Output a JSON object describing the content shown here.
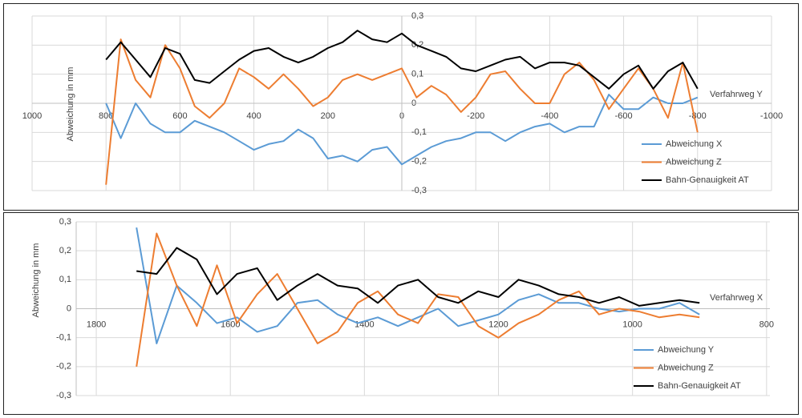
{
  "chart_data": [
    {
      "type": "line",
      "xlabel": "Verfahrweg Y",
      "ylabel": "Abweichung  in mm",
      "x": [
        800,
        760,
        720,
        680,
        640,
        600,
        560,
        520,
        480,
        440,
        400,
        360,
        320,
        280,
        240,
        200,
        160,
        120,
        80,
        40,
        0,
        -40,
        -80,
        -120,
        -160,
        -200,
        -240,
        -280,
        -320,
        -360,
        -400,
        -440,
        -480,
        -520,
        -560,
        -600,
        -640,
        -680,
        -720,
        -760,
        -800
      ],
      "xlim": [
        1000,
        -1000
      ],
      "xticks": [
        1000,
        800,
        600,
        400,
        200,
        0,
        -200,
        -400,
        -600,
        -800,
        -1000
      ],
      "ylim": [
        -0.3,
        0.3
      ],
      "yticks": [
        {
          "value": 0.3,
          "label": "0,3"
        },
        {
          "value": 0.2,
          "label": "0,2"
        },
        {
          "value": 0.1,
          "label": "0,1"
        },
        0,
        {
          "value": -0.1,
          "label": "-0,1"
        },
        {
          "value": -0.2,
          "label": "-0,2"
        },
        {
          "value": -0.3,
          "label": "-0,3"
        }
      ],
      "grid": true,
      "legend": "bottom-right",
      "series": [
        {
          "name": "Abweichung X",
          "color": "#5b9bd5",
          "values": [
            0.0,
            -0.12,
            0.0,
            -0.07,
            -0.1,
            -0.1,
            -0.06,
            -0.08,
            -0.1,
            -0.13,
            -0.16,
            -0.14,
            -0.13,
            -0.09,
            -0.12,
            -0.19,
            -0.18,
            -0.2,
            -0.16,
            -0.15,
            -0.21,
            -0.18,
            -0.15,
            -0.13,
            -0.12,
            -0.1,
            -0.1,
            -0.13,
            -0.1,
            -0.08,
            -0.07,
            -0.1,
            -0.08,
            -0.08,
            0.03,
            -0.02,
            -0.02,
            0.02,
            0.0,
            0.0,
            0.02
          ]
        },
        {
          "name": "Abweichung Z",
          "color": "#ed7d31",
          "values": [
            -0.28,
            0.22,
            0.08,
            0.02,
            0.2,
            0.12,
            -0.01,
            -0.05,
            0.0,
            0.12,
            0.09,
            0.05,
            0.1,
            0.05,
            -0.01,
            0.02,
            0.08,
            0.1,
            0.08,
            0.1,
            0.12,
            0.02,
            0.06,
            0.03,
            -0.03,
            0.02,
            0.1,
            0.11,
            0.05,
            0.0,
            0.0,
            0.1,
            0.14,
            0.08,
            -0.02,
            0.05,
            0.12,
            0.05,
            -0.05,
            0.14,
            -0.1
          ]
        },
        {
          "name": "Bahn-Genauigkeit AT",
          "color": "#000000",
          "values": [
            0.15,
            0.21,
            0.15,
            0.09,
            0.19,
            0.17,
            0.08,
            0.07,
            0.11,
            0.15,
            0.18,
            0.19,
            0.16,
            0.14,
            0.16,
            0.19,
            0.21,
            0.25,
            0.22,
            0.21,
            0.24,
            0.2,
            0.18,
            0.16,
            0.12,
            0.11,
            0.13,
            0.15,
            0.16,
            0.12,
            0.14,
            0.14,
            0.13,
            0.09,
            0.05,
            0.1,
            0.13,
            0.05,
            0.11,
            0.14,
            0.05
          ]
        }
      ]
    },
    {
      "type": "line",
      "xlabel": "Verfahrweg X",
      "ylabel": "Abweichung  in mm",
      "x": [
        1740,
        1710,
        1680,
        1650,
        1620,
        1590,
        1560,
        1530,
        1500,
        1470,
        1440,
        1410,
        1380,
        1350,
        1320,
        1290,
        1260,
        1230,
        1200,
        1170,
        1140,
        1110,
        1080,
        1050,
        1020,
        990,
        960,
        930,
        900
      ],
      "xlim": [
        1830,
        795
      ],
      "xticks": [
        1800,
        1600,
        1400,
        1200,
        1000,
        800
      ],
      "ylim": [
        -0.3,
        0.3
      ],
      "yticks": [
        {
          "value": 0.3,
          "label": "0,3"
        },
        {
          "value": 0.2,
          "label": "0,2"
        },
        {
          "value": 0.1,
          "label": "0,1"
        },
        0,
        {
          "value": -0.1,
          "label": "-0,1"
        },
        {
          "value": -0.2,
          "label": "-0,2"
        },
        {
          "value": -0.3,
          "label": "-0,3"
        }
      ],
      "grid": true,
      "legend": "bottom-right",
      "series": [
        {
          "name": "Abweichung Y",
          "color": "#5b9bd5",
          "values": [
            0.28,
            -0.12,
            0.08,
            0.02,
            -0.05,
            -0.03,
            -0.08,
            -0.06,
            0.02,
            0.03,
            -0.02,
            -0.05,
            -0.03,
            -0.06,
            -0.03,
            0.0,
            -0.06,
            -0.04,
            -0.02,
            0.03,
            0.05,
            0.02,
            0.02,
            0.0,
            -0.01,
            0.0,
            0.0,
            0.02,
            -0.02
          ]
        },
        {
          "name": "Abweichung Z",
          "color": "#ed7d31",
          "values": [
            -0.2,
            0.26,
            0.08,
            -0.06,
            0.15,
            -0.05,
            0.05,
            0.12,
            0.0,
            -0.12,
            -0.08,
            0.02,
            0.06,
            -0.02,
            -0.05,
            0.05,
            0.04,
            -0.06,
            -0.1,
            -0.05,
            -0.02,
            0.03,
            0.06,
            -0.02,
            0.0,
            -0.01,
            -0.03,
            -0.02,
            -0.03
          ]
        },
        {
          "name": "Bahn-Genauigkeit AT",
          "color": "#000000",
          "values": [
            0.13,
            0.12,
            0.21,
            0.17,
            0.05,
            0.12,
            0.14,
            0.03,
            0.08,
            0.12,
            0.08,
            0.07,
            0.02,
            0.08,
            0.1,
            0.04,
            0.02,
            0.06,
            0.04,
            0.1,
            0.08,
            0.05,
            0.04,
            0.02,
            0.04,
            0.01,
            0.02,
            0.03,
            0.02
          ]
        }
      ]
    }
  ]
}
